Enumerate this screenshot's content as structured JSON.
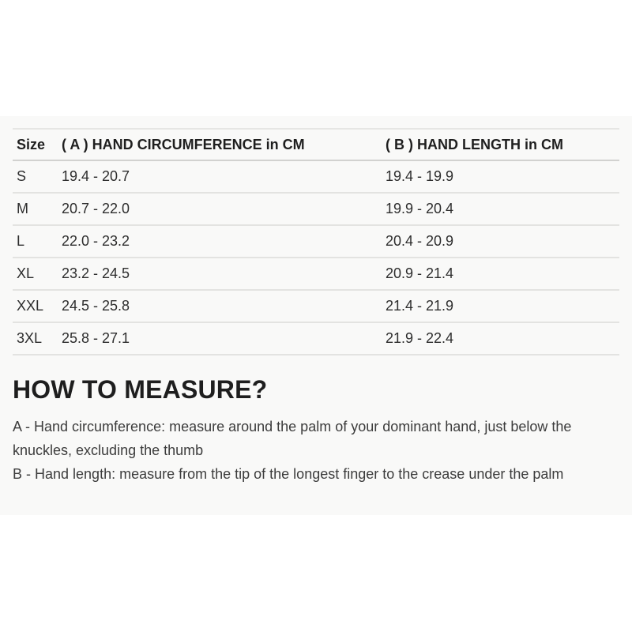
{
  "panel": {
    "background_color": "#f9f9f8"
  },
  "size_table": {
    "columns": [
      {
        "label": "Size"
      },
      {
        "label": "( A ) HAND CIRCUMFERENCE in CM"
      },
      {
        "label": "( B ) HAND LENGTH in CM"
      }
    ],
    "rows": [
      {
        "size": "S",
        "hand_circumference_cm": "19.4 - 20.7",
        "hand_length_cm": "19.4 - 19.9"
      },
      {
        "size": "M",
        "hand_circumference_cm": "20.7 - 22.0",
        "hand_length_cm": "19.9 - 20.4"
      },
      {
        "size": "L",
        "hand_circumference_cm": "22.0 - 23.2",
        "hand_length_cm": "20.4 - 20.9"
      },
      {
        "size": "XL",
        "hand_circumference_cm": "23.2 - 24.5",
        "hand_length_cm": "20.9 - 21.4"
      },
      {
        "size": "XXL",
        "hand_circumference_cm": "24.5 - 25.8",
        "hand_length_cm": "21.4 - 21.9"
      },
      {
        "size": "3XL",
        "hand_circumference_cm": "25.8 - 27.1",
        "hand_length_cm": "21.9 - 22.4"
      }
    ]
  },
  "how_to_measure": {
    "heading": "HOW TO MEASURE?",
    "instructions": [
      {
        "lines": [
          "A - Hand circumference: measure around the palm of your dominant hand, just below the",
          "knuckles, excluding the thumb"
        ]
      },
      {
        "lines": [
          "B - Hand length: measure from the tip of the longest finger to the crease under the palm"
        ]
      }
    ]
  },
  "colors": {
    "panel_background": "#f9f9f8",
    "table_top_border": "#e6e6e4",
    "header_underline": "#d2d2d0",
    "row_divider": "#e3e3e1",
    "heading_text": "#1e1e1e",
    "body_text": "#3c3c3c"
  }
}
